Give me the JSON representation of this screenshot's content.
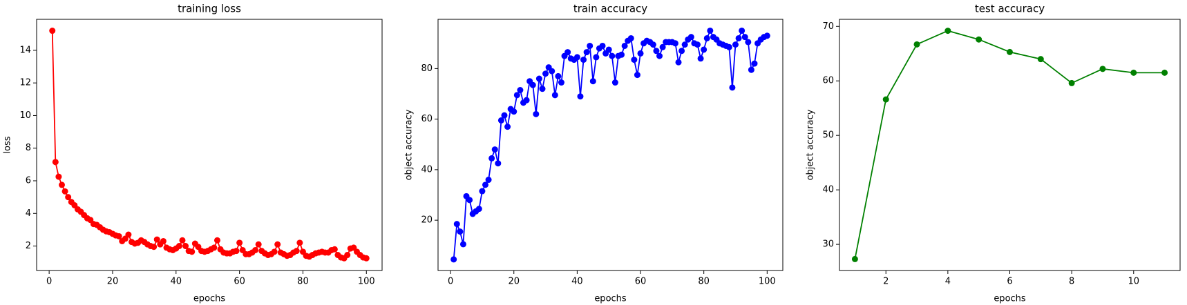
{
  "chart_data": [
    {
      "type": "line",
      "title": "training loss",
      "x_label": "epochs",
      "y_label": "loss",
      "color": "#ff0000",
      "x": [
        1,
        2,
        3,
        4,
        5,
        6,
        7,
        8,
        9,
        10,
        11,
        12,
        13,
        14,
        15,
        16,
        17,
        18,
        19,
        20,
        21,
        22,
        23,
        24,
        25,
        26,
        27,
        28,
        29,
        30,
        31,
        32,
        33,
        34,
        35,
        36,
        37,
        38,
        39,
        40,
        41,
        42,
        43,
        44,
        45,
        46,
        47,
        48,
        49,
        50,
        51,
        52,
        53,
        54,
        55,
        56,
        57,
        58,
        59,
        60,
        61,
        62,
        63,
        64,
        65,
        66,
        67,
        68,
        69,
        70,
        71,
        72,
        73,
        74,
        75,
        76,
        77,
        78,
        79,
        80,
        81,
        82,
        83,
        84,
        85,
        86,
        87,
        88,
        89,
        90,
        91,
        92,
        93,
        94,
        95,
        96,
        97,
        98,
        99,
        100
      ],
      "values": [
        15.2,
        7.15,
        6.25,
        5.75,
        5.35,
        5.0,
        4.7,
        4.5,
        4.25,
        4.1,
        3.9,
        3.7,
        3.6,
        3.35,
        3.3,
        3.15,
        3.0,
        2.9,
        2.85,
        2.75,
        2.65,
        2.6,
        2.3,
        2.45,
        2.7,
        2.25,
        2.15,
        2.2,
        2.35,
        2.25,
        2.1,
        2.0,
        1.95,
        2.4,
        2.1,
        2.3,
        1.9,
        1.8,
        1.75,
        1.85,
        2.0,
        2.35,
        2.0,
        1.7,
        1.65,
        2.15,
        1.95,
        1.7,
        1.65,
        1.7,
        1.8,
        1.9,
        2.35,
        1.8,
        1.6,
        1.55,
        1.55,
        1.65,
        1.7,
        2.2,
        1.75,
        1.5,
        1.5,
        1.6,
        1.75,
        2.1,
        1.7,
        1.55,
        1.45,
        1.5,
        1.65,
        2.1,
        1.6,
        1.5,
        1.4,
        1.45,
        1.6,
        1.7,
        2.2,
        1.65,
        1.4,
        1.35,
        1.45,
        1.55,
        1.6,
        1.65,
        1.6,
        1.6,
        1.75,
        1.8,
        1.45,
        1.3,
        1.25,
        1.45,
        1.85,
        1.9,
        1.65,
        1.45,
        1.3,
        1.25
      ],
      "xlim": [
        -3.95,
        104.95
      ],
      "xticks": [
        0,
        20,
        40,
        60,
        80,
        100
      ],
      "ylim": [
        0.5,
        15.9
      ],
      "yticks": [
        2,
        4,
        6,
        8,
        10,
        12,
        14
      ]
    },
    {
      "type": "line",
      "title": "train accuracy",
      "x_label": "epochs",
      "y_label": "object accuracy",
      "color": "#0000ff",
      "x": [
        1,
        2,
        3,
        4,
        5,
        6,
        7,
        8,
        9,
        10,
        11,
        12,
        13,
        14,
        15,
        16,
        17,
        18,
        19,
        20,
        21,
        22,
        23,
        24,
        25,
        26,
        27,
        28,
        29,
        30,
        31,
        32,
        33,
        34,
        35,
        36,
        37,
        38,
        39,
        40,
        41,
        42,
        43,
        44,
        45,
        46,
        47,
        48,
        49,
        50,
        51,
        52,
        53,
        54,
        55,
        56,
        57,
        58,
        59,
        60,
        61,
        62,
        63,
        64,
        65,
        66,
        67,
        68,
        69,
        70,
        71,
        72,
        73,
        74,
        75,
        76,
        77,
        78,
        79,
        80,
        81,
        82,
        83,
        84,
        85,
        86,
        87,
        88,
        89,
        90,
        91,
        92,
        93,
        94,
        95,
        96,
        97,
        98,
        99,
        100
      ],
      "values": [
        4.5,
        18.5,
        15.5,
        10.5,
        29.5,
        28,
        22.5,
        23.5,
        24.5,
        31.5,
        34,
        36,
        44.5,
        48,
        42.5,
        59.5,
        61.5,
        57,
        64,
        63,
        69.5,
        71.5,
        66.5,
        67.5,
        75,
        73.5,
        62,
        76,
        72,
        78,
        80.5,
        79,
        69.5,
        77,
        74.5,
        85,
        86.5,
        84,
        83.5,
        84.5,
        69,
        83.5,
        86.5,
        89,
        75,
        84.5,
        88,
        89,
        86,
        87.5,
        85,
        74.5,
        85,
        85.5,
        89,
        91,
        92,
        83.5,
        77.5,
        86,
        90,
        91,
        90.5,
        89.5,
        87,
        85,
        88.5,
        90.5,
        90.5,
        90.5,
        90,
        82.5,
        87,
        89.5,
        91.5,
        92.5,
        90,
        89.5,
        84,
        87.5,
        92,
        95,
        92.5,
        91.5,
        90,
        89.5,
        89,
        88.5,
        72.5,
        89.5,
        92,
        95,
        92.5,
        90.5,
        79.5,
        82,
        90,
        91.5,
        92.5,
        93
      ],
      "xlim": [
        -3.95,
        104.95
      ],
      "xticks": [
        0,
        20,
        40,
        60,
        80,
        100
      ],
      "ylim": [
        0.1,
        99.5
      ],
      "yticks": [
        20,
        40,
        60,
        80
      ]
    },
    {
      "type": "line",
      "title": "test accuracy",
      "x_label": "epochs",
      "y_label": "object accuracy",
      "color": "#008000",
      "x": [
        1,
        2,
        3,
        4,
        5,
        6,
        7,
        8,
        9,
        10,
        11
      ],
      "values": [
        27.3,
        56.6,
        66.7,
        69.2,
        67.6,
        65.3,
        64.0,
        59.6,
        62.2,
        61.5,
        61.5
      ],
      "xlim": [
        0.5,
        11.5
      ],
      "xticks": [
        2,
        4,
        6,
        8,
        10
      ],
      "ylim": [
        25.2,
        71.3
      ],
      "yticks": [
        30,
        40,
        50,
        60,
        70
      ]
    }
  ]
}
